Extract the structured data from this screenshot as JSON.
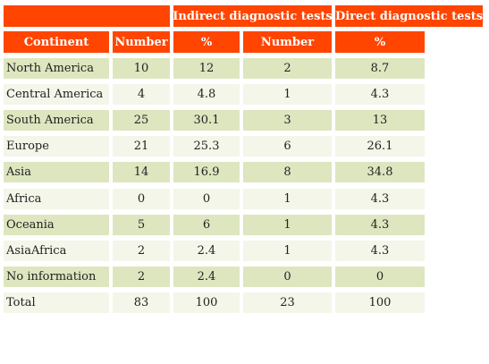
{
  "table": {
    "group_headers": {
      "indirect": "Indirect diagnostic tests",
      "direct": "Direct diagnostic tests"
    },
    "column_headers": [
      "Continent",
      "Number",
      "%",
      "Number",
      "%"
    ],
    "rows": [
      [
        "North America",
        "10",
        "12",
        "2",
        "8.7"
      ],
      [
        "Central America",
        "4",
        "4.8",
        "1",
        "4.3"
      ],
      [
        "South America",
        "25",
        "30.1",
        "3",
        "13"
      ],
      [
        "Europe",
        "21",
        "25.3",
        "6",
        "26.1"
      ],
      [
        "Asia",
        "14",
        "16.9",
        "8",
        "34.8"
      ],
      [
        "Africa",
        "0",
        "0",
        "1",
        "4.3"
      ],
      [
        "Oceania",
        "5",
        "6",
        "1",
        "4.3"
      ],
      [
        "AsiaAfrica",
        "2",
        "2.4",
        "1",
        "4.3"
      ],
      [
        "No information",
        "2",
        "2.4",
        "0",
        "0"
      ],
      [
        "Total",
        "83",
        "100",
        "23",
        "100"
      ]
    ],
    "colors": {
      "header": "#ff4500",
      "row_dark": "#dde6bf",
      "row_light": "#f3f6e9"
    }
  }
}
